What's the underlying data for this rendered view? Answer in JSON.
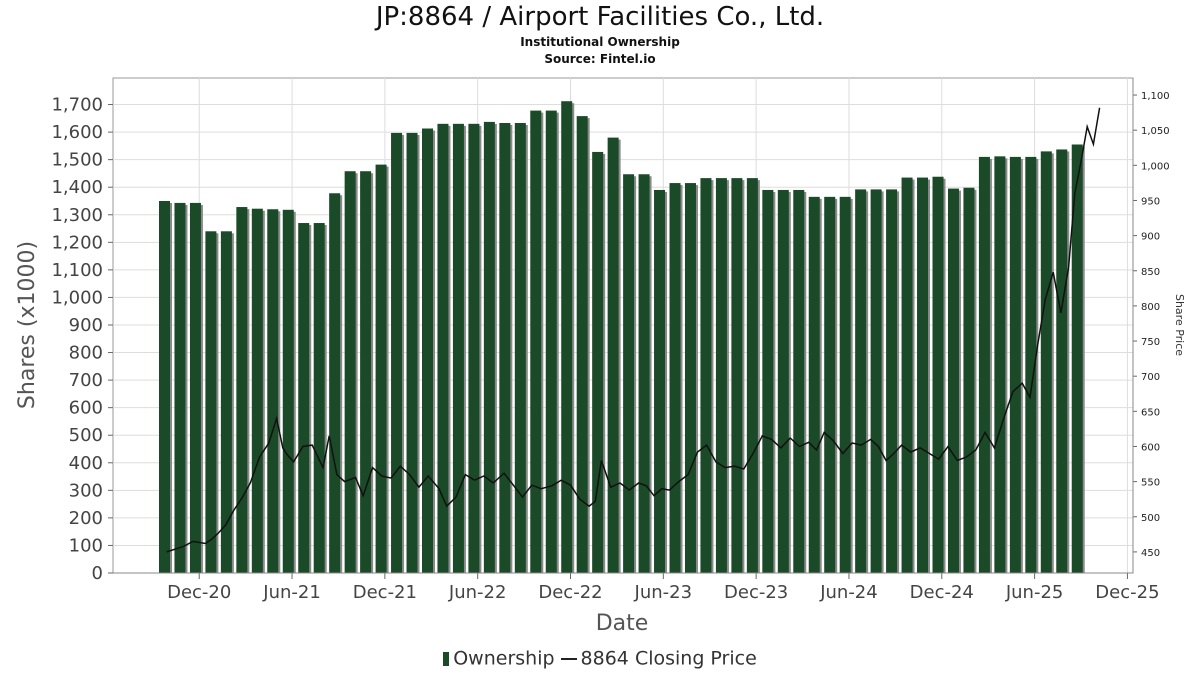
{
  "chart_data": {
    "type": "bar",
    "title": "JP:8864 / Airport Facilities Co., Ltd.",
    "subtitle": "Institutional Ownership",
    "source": "Source: Fintel.io",
    "xlabel": "Date",
    "ylabel": "Shares (x1000)",
    "y2label": "Share Price",
    "ylim": [
      0,
      1760
    ],
    "y2lim": [
      420,
      1110
    ],
    "yticks": [
      "0",
      "100",
      "200",
      "300",
      "400",
      "500",
      "600",
      "700",
      "800",
      "900",
      "1,000",
      "1,100",
      "1,200",
      "1,300",
      "1,400",
      "1,500",
      "1,600",
      "1,700"
    ],
    "y2ticks": [
      "450",
      "500",
      "550",
      "600",
      "650",
      "700",
      "750",
      "800",
      "850",
      "900",
      "950",
      "1,000",
      "1,050",
      "1,100"
    ],
    "xticks": [
      "Dec-20",
      "Jun-21",
      "Dec-21",
      "Jun-22",
      "Dec-22",
      "Jun-23",
      "Dec-23",
      "Jun-24",
      "Dec-24",
      "Jun-25",
      "Dec-25"
    ],
    "grid": true,
    "legend_position": "bottom",
    "colors": {
      "bar": "#1b4a28",
      "bar_shadow": "#8a8a8a",
      "line": "#111111",
      "grid": "#dddddd"
    },
    "series": [
      {
        "name": "Ownership",
        "type": "bar",
        "values": [
          1350,
          1343,
          1343,
          1240,
          1240,
          1328,
          1322,
          1320,
          1318,
          1270,
          1270,
          1378,
          1458,
          1458,
          1482,
          1597,
          1597,
          1613,
          1630,
          1630,
          1630,
          1637,
          1633,
          1633,
          1678,
          1678,
          1712,
          1658,
          1528,
          1580,
          1447,
          1447,
          1390,
          1415,
          1415,
          1433,
          1433,
          1433,
          1433,
          1390,
          1390,
          1390,
          1365,
          1365,
          1365,
          1392,
          1392,
          1392,
          1435,
          1435,
          1438,
          1395,
          1398,
          1510,
          1512,
          1510,
          1510,
          1530,
          1537,
          1555
        ]
      },
      {
        "name": "8864 Closing Price",
        "type": "line",
        "axis": "right",
        "points": [
          [
            0.5,
            450
          ],
          [
            1.6,
            458
          ],
          [
            2.2,
            465
          ],
          [
            3.0,
            462
          ],
          [
            3.4,
            468
          ],
          [
            3.8,
            476
          ],
          [
            4.3,
            488
          ],
          [
            4.8,
            508
          ],
          [
            5.4,
            528
          ],
          [
            5.9,
            548
          ],
          [
            6.5,
            585
          ],
          [
            7.1,
            605
          ],
          [
            7.6,
            640
          ],
          [
            8.0,
            598
          ],
          [
            8.3,
            588
          ],
          [
            8.7,
            578
          ],
          [
            9.3,
            600
          ],
          [
            9.9,
            602
          ],
          [
            10.6,
            570
          ],
          [
            11.0,
            615
          ],
          [
            11.5,
            560
          ],
          [
            12.0,
            550
          ],
          [
            12.7,
            556
          ],
          [
            13.2,
            530
          ],
          [
            13.8,
            570
          ],
          [
            14.4,
            558
          ],
          [
            15.0,
            555
          ],
          [
            15.6,
            572
          ],
          [
            16.2,
            560
          ],
          [
            16.8,
            542
          ],
          [
            17.4,
            558
          ],
          [
            18.1,
            540
          ],
          [
            18.6,
            515
          ],
          [
            19.2,
            528
          ],
          [
            19.8,
            560
          ],
          [
            20.4,
            552
          ],
          [
            21.0,
            558
          ],
          [
            21.6,
            548
          ],
          [
            22.3,
            562
          ],
          [
            22.9,
            545
          ],
          [
            23.5,
            528
          ],
          [
            24.1,
            545
          ],
          [
            24.7,
            540
          ],
          [
            25.4,
            544
          ],
          [
            26.0,
            552
          ],
          [
            26.6,
            545
          ],
          [
            27.2,
            525
          ],
          [
            27.8,
            515
          ],
          [
            28.2,
            522
          ],
          [
            28.6,
            580
          ],
          [
            29.2,
            542
          ],
          [
            29.8,
            548
          ],
          [
            30.4,
            538
          ],
          [
            31.0,
            548
          ],
          [
            31.5,
            544
          ],
          [
            32.0,
            530
          ],
          [
            32.5,
            540
          ],
          [
            33.0,
            538
          ],
          [
            33.6,
            550
          ],
          [
            34.2,
            560
          ],
          [
            34.8,
            592
          ],
          [
            35.4,
            602
          ],
          [
            36.0,
            578
          ],
          [
            36.6,
            570
          ],
          [
            37.2,
            572
          ],
          [
            37.8,
            568
          ],
          [
            38.4,
            590
          ],
          [
            39.0,
            615
          ],
          [
            39.6,
            610
          ],
          [
            40.2,
            598
          ],
          [
            40.8,
            612
          ],
          [
            41.4,
            600
          ],
          [
            42.0,
            606
          ],
          [
            42.5,
            595
          ],
          [
            43.0,
            620
          ],
          [
            43.6,
            608
          ],
          [
            44.2,
            590
          ],
          [
            44.8,
            605
          ],
          [
            45.4,
            602
          ],
          [
            46.0,
            610
          ],
          [
            46.5,
            600
          ],
          [
            47.0,
            580
          ],
          [
            47.5,
            590
          ],
          [
            48.0,
            602
          ],
          [
            48.6,
            592
          ],
          [
            49.2,
            598
          ],
          [
            49.8,
            590
          ],
          [
            50.4,
            582
          ],
          [
            51.0,
            600
          ],
          [
            51.6,
            580
          ],
          [
            52.2,
            585
          ],
          [
            52.8,
            595
          ],
          [
            53.4,
            620
          ],
          [
            54.0,
            598
          ],
          [
            54.6,
            640
          ],
          [
            55.2,
            678
          ],
          [
            55.8,
            690
          ],
          [
            56.3,
            670
          ],
          [
            56.8,
            745
          ],
          [
            57.3,
            810
          ],
          [
            57.8,
            848
          ],
          [
            58.3,
            790
          ],
          [
            58.8,
            855
          ],
          [
            59.2,
            960
          ],
          [
            59.6,
            1005
          ],
          [
            60.0,
            1055
          ],
          [
            60.4,
            1030
          ],
          [
            60.8,
            1082
          ]
        ]
      }
    ]
  }
}
